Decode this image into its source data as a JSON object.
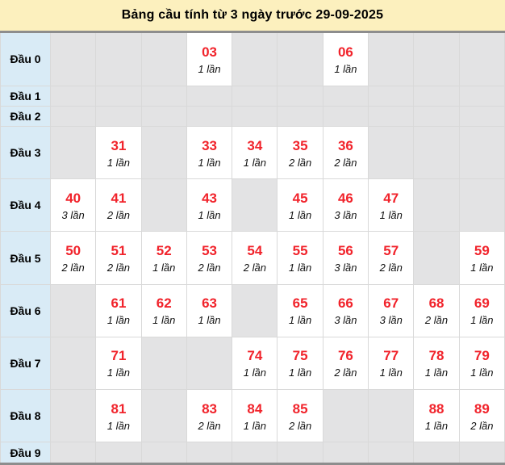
{
  "title": "Bảng cầu tính từ 3 ngày trước 29-09-2025",
  "colors": {
    "title_bg": "#fcf0be",
    "label_bg": "#d9ebf6",
    "empty_cell_bg": "#e3e3e4",
    "number_red": "#f1232b",
    "table_border_dark": "#8d8d8d"
  },
  "table": {
    "column_digits": [
      "0",
      "1",
      "2",
      "3",
      "4",
      "5",
      "6",
      "7",
      "8",
      "9"
    ],
    "rows": [
      {
        "label": "Đầu 0",
        "cells": [
          null,
          null,
          null,
          {
            "num": "03",
            "count": "1 lần"
          },
          null,
          null,
          {
            "num": "06",
            "count": "1 lần"
          },
          null,
          null,
          null
        ]
      },
      {
        "label": "Đầu 1",
        "cells": [
          null,
          null,
          null,
          null,
          null,
          null,
          null,
          null,
          null,
          null
        ]
      },
      {
        "label": "Đầu 2",
        "cells": [
          null,
          null,
          null,
          null,
          null,
          null,
          null,
          null,
          null,
          null
        ]
      },
      {
        "label": "Đầu 3",
        "cells": [
          null,
          {
            "num": "31",
            "count": "1 lần"
          },
          null,
          {
            "num": "33",
            "count": "1 lần"
          },
          {
            "num": "34",
            "count": "1 lần"
          },
          {
            "num": "35",
            "count": "2 lần"
          },
          {
            "num": "36",
            "count": "2 lần"
          },
          null,
          null,
          null
        ]
      },
      {
        "label": "Đầu 4",
        "cells": [
          {
            "num": "40",
            "count": "3 lần"
          },
          {
            "num": "41",
            "count": "2 lần"
          },
          null,
          {
            "num": "43",
            "count": "1 lần"
          },
          null,
          {
            "num": "45",
            "count": "1 lần"
          },
          {
            "num": "46",
            "count": "3 lần"
          },
          {
            "num": "47",
            "count": "1 lần"
          },
          null,
          null
        ]
      },
      {
        "label": "Đầu 5",
        "cells": [
          {
            "num": "50",
            "count": "2 lần"
          },
          {
            "num": "51",
            "count": "2 lần"
          },
          {
            "num": "52",
            "count": "1 lần"
          },
          {
            "num": "53",
            "count": "2 lần"
          },
          {
            "num": "54",
            "count": "2 lần"
          },
          {
            "num": "55",
            "count": "1 lần"
          },
          {
            "num": "56",
            "count": "3 lần"
          },
          {
            "num": "57",
            "count": "2 lần"
          },
          null,
          {
            "num": "59",
            "count": "1 lần"
          }
        ]
      },
      {
        "label": "Đầu 6",
        "cells": [
          null,
          {
            "num": "61",
            "count": "1 lần"
          },
          {
            "num": "62",
            "count": "1 lần"
          },
          {
            "num": "63",
            "count": "1 lần"
          },
          null,
          {
            "num": "65",
            "count": "1 lần"
          },
          {
            "num": "66",
            "count": "3 lần"
          },
          {
            "num": "67",
            "count": "3 lần"
          },
          {
            "num": "68",
            "count": "2 lần"
          },
          {
            "num": "69",
            "count": "1 lần"
          }
        ]
      },
      {
        "label": "Đầu 7",
        "cells": [
          null,
          {
            "num": "71",
            "count": "1 lần"
          },
          null,
          null,
          {
            "num": "74",
            "count": "1 lần"
          },
          {
            "num": "75",
            "count": "1 lần"
          },
          {
            "num": "76",
            "count": "2 lần"
          },
          {
            "num": "77",
            "count": "1 lần"
          },
          {
            "num": "78",
            "count": "1 lần"
          },
          {
            "num": "79",
            "count": "1 lần"
          }
        ]
      },
      {
        "label": "Đầu 8",
        "cells": [
          null,
          {
            "num": "81",
            "count": "1 lần"
          },
          null,
          {
            "num": "83",
            "count": "2 lần"
          },
          {
            "num": "84",
            "count": "1 lần"
          },
          {
            "num": "85",
            "count": "2 lần"
          },
          null,
          null,
          {
            "num": "88",
            "count": "1 lần"
          },
          {
            "num": "89",
            "count": "2 lần"
          }
        ]
      },
      {
        "label": "Đầu 9",
        "cells": [
          null,
          null,
          null,
          null,
          null,
          null,
          null,
          null,
          null,
          null
        ]
      }
    ]
  }
}
